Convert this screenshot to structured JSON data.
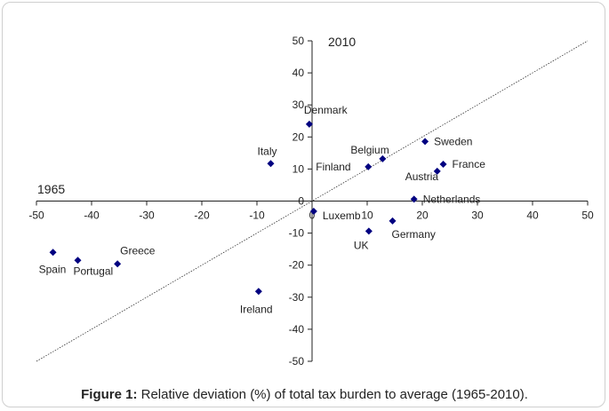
{
  "chart_data": {
    "type": "scatter",
    "x_axis_label": "1965",
    "y_axis_label": "2010",
    "xlim": [
      -50,
      50
    ],
    "ylim": [
      -50,
      50
    ],
    "x_ticks": [
      -50,
      -40,
      -30,
      -20,
      -10,
      0,
      10,
      20,
      30,
      40,
      50
    ],
    "y_ticks": [
      -50,
      -40,
      -30,
      -20,
      -10,
      0,
      10,
      20,
      30,
      40,
      50
    ],
    "diagonal_line": true,
    "marker_color": "#000080",
    "points": [
      {
        "label": "Denmark",
        "x": -0.5,
        "y": 24
      },
      {
        "label": "Italy",
        "x": -7.5,
        "y": 11.7
      },
      {
        "label": "Sweden",
        "x": 20.5,
        "y": 18.6
      },
      {
        "label": "Belgium",
        "x": 12.8,
        "y": 13.2
      },
      {
        "label": "Finland",
        "x": 10.2,
        "y": 10.7
      },
      {
        "label": "France",
        "x": 23.8,
        "y": 11.5
      },
      {
        "label": "Austria",
        "x": 22.7,
        "y": 9.3
      },
      {
        "label": "Netherlands",
        "x": 18.5,
        "y": 0.6
      },
      {
        "label": "Luxemb",
        "x": 0.3,
        "y": -3.2
      },
      {
        "label": "Germany",
        "x": 14.6,
        "y": -6.2
      },
      {
        "label": "UK",
        "x": 10.3,
        "y": -9.4
      },
      {
        "label": "Greece",
        "x": -35.3,
        "y": -19.6
      },
      {
        "label": "Spain",
        "x": -47,
        "y": -16
      },
      {
        "label": "Portugal",
        "x": -42.5,
        "y": -18.5
      },
      {
        "label": "Ireland",
        "x": -9.7,
        "y": -28.2
      }
    ]
  },
  "caption": {
    "prefix": "Figure 1:",
    "text": " Relative deviation (%) of total tax burden to average (1965-2010)."
  }
}
